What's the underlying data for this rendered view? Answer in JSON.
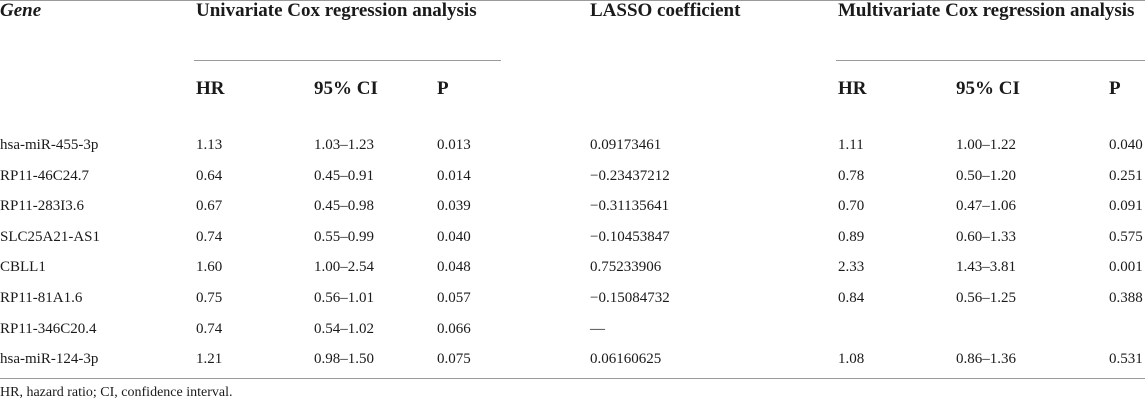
{
  "headers": {
    "gene": "Gene",
    "univariate": "Univariate Cox regression analysis",
    "lasso": "LASSO coefficient",
    "multivariate": "Multivariate Cox regression analysis"
  },
  "subheaders": {
    "uni_hr": "HR",
    "uni_ci": "95% CI",
    "uni_p": "P",
    "multi_hr": "HR",
    "multi_ci": "95% CI",
    "multi_p": "P"
  },
  "rows": [
    {
      "gene": "hsa-miR-455-3p",
      "uni_hr": "1.13",
      "uni_ci": "1.03–1.23",
      "uni_p": "0.013",
      "lasso": "0.09173461",
      "multi_hr": "1.11",
      "multi_ci": "1.00–1.22",
      "multi_p": "0.040"
    },
    {
      "gene": "RP11-46C24.7",
      "uni_hr": "0.64",
      "uni_ci": "0.45–0.91",
      "uni_p": "0.014",
      "lasso": "−0.23437212",
      "multi_hr": "0.78",
      "multi_ci": "0.50–1.20",
      "multi_p": "0.251"
    },
    {
      "gene": "RP11-283I3.6",
      "uni_hr": "0.67",
      "uni_ci": "0.45–0.98",
      "uni_p": "0.039",
      "lasso": "−0.31135641",
      "multi_hr": "0.70",
      "multi_ci": "0.47–1.06",
      "multi_p": "0.091"
    },
    {
      "gene": "SLC25A21-AS1",
      "uni_hr": "0.74",
      "uni_ci": "0.55–0.99",
      "uni_p": "0.040",
      "lasso": "−0.10453847",
      "multi_hr": "0.89",
      "multi_ci": "0.60–1.33",
      "multi_p": "0.575"
    },
    {
      "gene": "CBLL1",
      "uni_hr": "1.60",
      "uni_ci": "1.00–2.54",
      "uni_p": "0.048",
      "lasso": "0.75233906",
      "multi_hr": "2.33",
      "multi_ci": "1.43–3.81",
      "multi_p": "0.001"
    },
    {
      "gene": "RP11-81A1.6",
      "uni_hr": "0.75",
      "uni_ci": "0.56–1.01",
      "uni_p": "0.057",
      "lasso": "−0.15084732",
      "multi_hr": "0.84",
      "multi_ci": "0.56–1.25",
      "multi_p": "0.388"
    },
    {
      "gene": "RP11-346C20.4",
      "uni_hr": "0.74",
      "uni_ci": "0.54–1.02",
      "uni_p": "0.066",
      "lasso": "—",
      "multi_hr": "",
      "multi_ci": "",
      "multi_p": ""
    },
    {
      "gene": "hsa-miR-124-3p",
      "uni_hr": "1.21",
      "uni_ci": "0.98–1.50",
      "uni_p": "0.075",
      "lasso": "0.06160625",
      "multi_hr": "1.08",
      "multi_ci": "0.86–1.36",
      "multi_p": "0.531"
    }
  ],
  "footnote": "HR, hazard ratio; CI, confidence interval."
}
